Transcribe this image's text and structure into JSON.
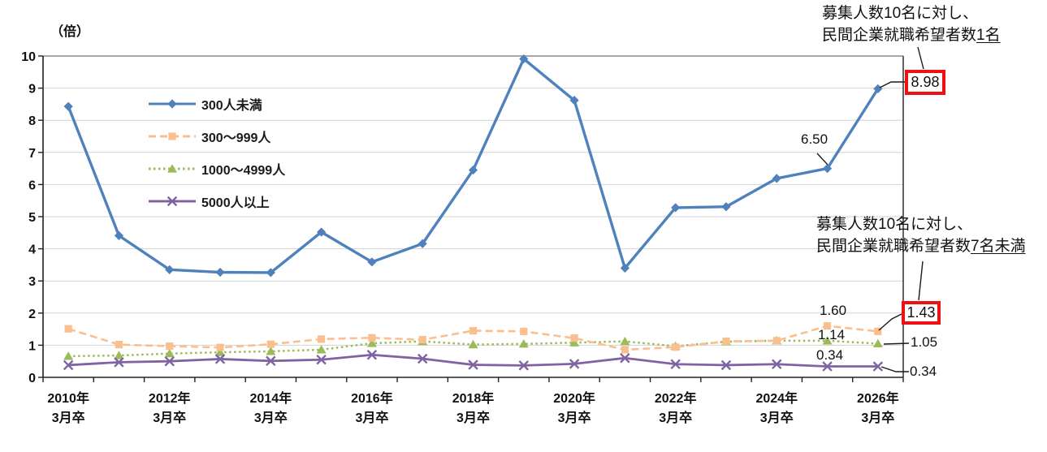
{
  "chart_data": {
    "type": "line",
    "y_axis": {
      "unit_label": "（倍）",
      "min": 0,
      "max": 10,
      "step": 1
    },
    "x_axis": {
      "years": [
        2010,
        2011,
        2012,
        2013,
        2014,
        2015,
        2016,
        2017,
        2018,
        2019,
        2020,
        2021,
        2022,
        2023,
        2024,
        2025,
        2026
      ],
      "tick_labels": [
        {
          "line1": "2010年",
          "line2": "3月卒"
        },
        {
          "line1": "2012年",
          "line2": "3月卒"
        },
        {
          "line1": "2014年",
          "line2": "3月卒"
        },
        {
          "line1": "2016年",
          "line2": "3月卒"
        },
        {
          "line1": "2018年",
          "line2": "3月卒"
        },
        {
          "line1": "2020年",
          "line2": "3月卒"
        },
        {
          "line1": "2022年",
          "line2": "3月卒"
        },
        {
          "line1": "2024年",
          "line2": "3月卒"
        },
        {
          "line1": "2026年",
          "line2": "3月卒"
        }
      ],
      "labeled_every_n_categories": 2
    },
    "grid": true,
    "legend_position": "inside-upper-left",
    "series": [
      {
        "name": "300人未満",
        "color": "#4F81BD",
        "line_style": "solid",
        "marker": "diamond",
        "values": [
          8.43,
          4.41,
          3.35,
          3.27,
          3.26,
          4.52,
          3.59,
          4.16,
          6.45,
          9.91,
          8.62,
          3.4,
          5.28,
          5.31,
          6.19,
          6.5,
          8.98
        ]
      },
      {
        "name": "300〜999人",
        "color": "#FABF8F",
        "line_style": "dashed",
        "marker": "square",
        "values": [
          1.51,
          1.02,
          0.97,
          0.93,
          1.03,
          1.19,
          1.23,
          1.17,
          1.45,
          1.43,
          1.22,
          0.86,
          0.94,
          1.12,
          1.14,
          1.6,
          1.43
        ]
      },
      {
        "name": "1000〜4999人",
        "color": "#9BBB59",
        "line_style": "dotted",
        "marker": "triangle",
        "values": [
          0.66,
          0.68,
          0.74,
          0.78,
          0.81,
          0.86,
          1.06,
          1.12,
          1.02,
          1.04,
          1.08,
          1.12,
          0.97,
          1.11,
          1.14,
          1.14,
          1.05
        ]
      },
      {
        "name": "5000人以上",
        "color": "#8064A2",
        "line_style": "solid",
        "marker": "x",
        "values": [
          0.38,
          0.47,
          0.5,
          0.57,
          0.51,
          0.55,
          0.7,
          0.58,
          0.39,
          0.37,
          0.42,
          0.6,
          0.41,
          0.38,
          0.41,
          0.34,
          0.34
        ]
      }
    ]
  },
  "point_labels": {
    "blue_2025": "6.50",
    "blue_2026_boxed": "8.98",
    "orange_2025": "1.60",
    "orange_2026_boxed": "1.43",
    "green_2025": "1.14",
    "green_2026": "1.05",
    "purple_2025": "0.34",
    "purple_2026": "0.34"
  },
  "annotations": {
    "top": {
      "line1": "募集人数10名に対し、",
      "line2_prefix": "民間企業就職希望者数",
      "line2_underlined": "1名"
    },
    "middle": {
      "line1": "募集人数10名に対し、",
      "line2_prefix": "民間企業就職希望者数",
      "line2_underlined": "7名未満"
    }
  },
  "colors": {
    "highlight_box_border": "#EE1111",
    "gridline": "#D2D2D2",
    "top_gridline": "#A8A8A8",
    "axis": "#222222"
  }
}
